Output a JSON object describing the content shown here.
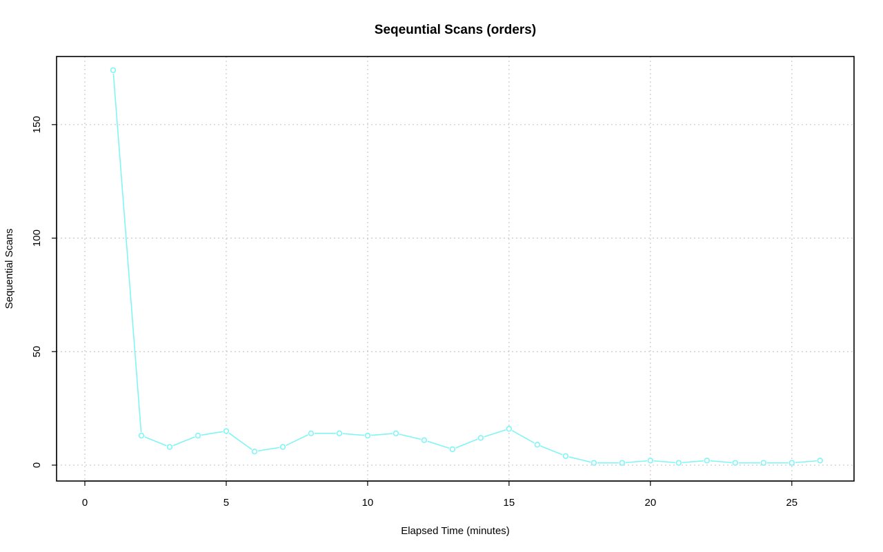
{
  "chart_data": {
    "type": "line",
    "title": "Seqeuntial Scans (orders)",
    "xlabel": "Elapsed Time (minutes)",
    "ylabel": "Sequential Scans",
    "xlim": [
      -1,
      27.2
    ],
    "ylim": [
      -7,
      180
    ],
    "xticks": [
      0,
      5,
      10,
      15,
      20,
      25
    ],
    "yticks": [
      0,
      50,
      100,
      150
    ],
    "grid": true,
    "series": [
      {
        "color": "#7ff5f5",
        "x": [
          1,
          2,
          3,
          4,
          5,
          6,
          7,
          8,
          9,
          10,
          11,
          12,
          13,
          14,
          15,
          16,
          17,
          18,
          19,
          20,
          21,
          22,
          23,
          24,
          25,
          26
        ],
        "values": [
          174,
          13,
          8,
          13,
          15,
          6,
          8,
          14,
          14,
          13,
          14,
          11,
          7,
          12,
          16,
          9,
          4,
          1,
          1,
          2,
          1,
          2,
          1,
          1,
          1,
          2
        ]
      }
    ]
  }
}
